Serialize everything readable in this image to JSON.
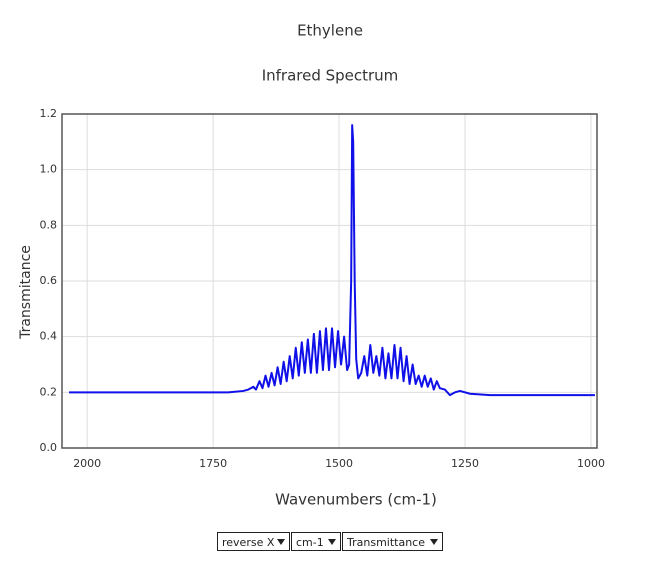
{
  "chart_data": {
    "type": "line",
    "title": "Ethylene",
    "subtitle": "Infrared Spectrum",
    "x_label": "Wavenumbers (cm-1)",
    "y_label": "Transmitance",
    "x": [
      2036,
      1900,
      1800,
      1720,
      1690,
      1680,
      1670,
      1665,
      1658,
      1652,
      1646,
      1640,
      1634,
      1628,
      1622,
      1616,
      1610,
      1604,
      1598,
      1592,
      1586,
      1580,
      1574,
      1568,
      1562,
      1556,
      1550,
      1544,
      1538,
      1532,
      1526,
      1520,
      1514,
      1508,
      1502,
      1496,
      1490,
      1484,
      1480,
      1476,
      1474,
      1472,
      1469,
      1466,
      1462,
      1456,
      1450,
      1444,
      1438,
      1432,
      1426,
      1420,
      1414,
      1408,
      1402,
      1396,
      1390,
      1384,
      1378,
      1372,
      1366,
      1360,
      1354,
      1348,
      1342,
      1336,
      1330,
      1324,
      1318,
      1312,
      1306,
      1300,
      1290,
      1280,
      1270,
      1260,
      1240,
      1200,
      1100,
      1050,
      992
    ],
    "values": [
      0.2,
      0.2,
      0.2,
      0.2,
      0.205,
      0.21,
      0.22,
      0.21,
      0.24,
      0.215,
      0.26,
      0.22,
      0.27,
      0.225,
      0.29,
      0.23,
      0.31,
      0.24,
      0.33,
      0.25,
      0.36,
      0.26,
      0.38,
      0.27,
      0.39,
      0.27,
      0.41,
      0.27,
      0.42,
      0.28,
      0.43,
      0.28,
      0.43,
      0.29,
      0.42,
      0.3,
      0.4,
      0.28,
      0.3,
      0.6,
      1.16,
      1.1,
      0.6,
      0.32,
      0.25,
      0.27,
      0.33,
      0.26,
      0.37,
      0.27,
      0.33,
      0.26,
      0.36,
      0.25,
      0.34,
      0.25,
      0.37,
      0.25,
      0.36,
      0.24,
      0.33,
      0.23,
      0.3,
      0.23,
      0.26,
      0.22,
      0.26,
      0.22,
      0.25,
      0.21,
      0.24,
      0.215,
      0.21,
      0.19,
      0.2,
      0.205,
      0.195,
      0.19,
      0.19,
      0.19,
      0.19
    ],
    "color": "#1010e8",
    "xlim": [
      2050,
      988
    ],
    "ylim": [
      0,
      1.2
    ],
    "xticks": [
      2000,
      1750,
      1500,
      1250,
      1000
    ],
    "yticks": [
      {
        "value": 0,
        "label": "0.0"
      },
      0.2,
      0.4,
      0.6,
      0.8,
      {
        "value": 1,
        "label": "1.0"
      },
      1.2
    ],
    "grid": true
  },
  "controls": [
    "reverse X",
    "cm-1",
    "Transmittance"
  ]
}
